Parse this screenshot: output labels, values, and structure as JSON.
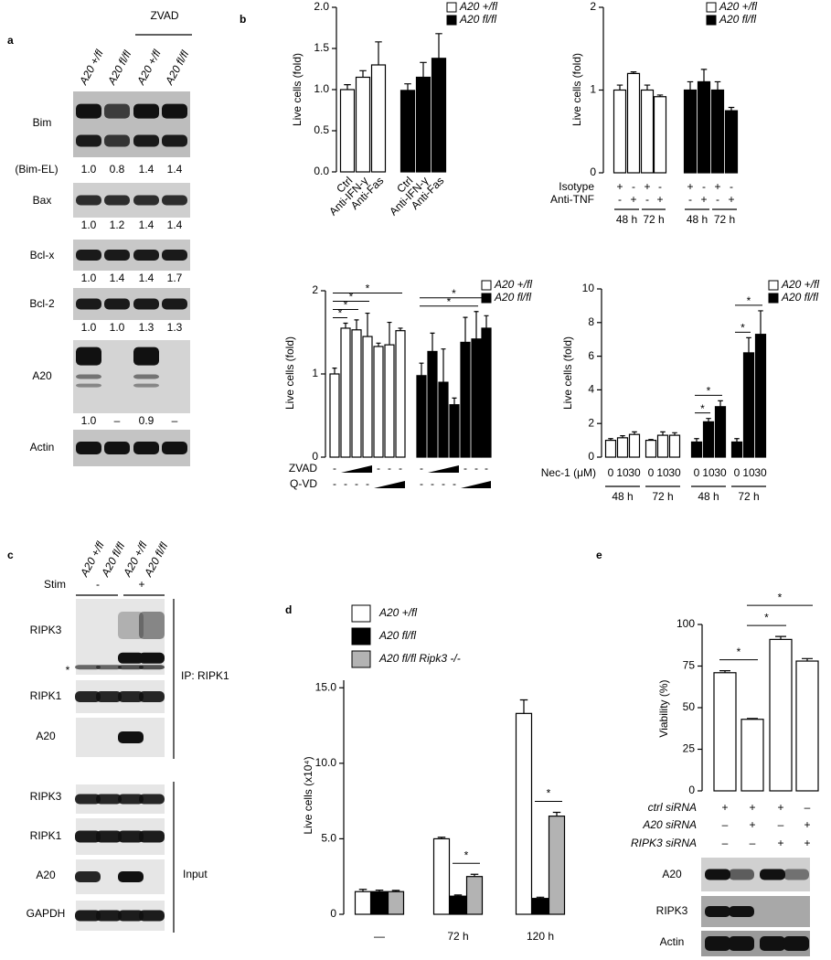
{
  "panel_labels": [
    "a",
    "b",
    "c",
    "d",
    "e"
  ],
  "blot_a": {
    "lanes": [
      "A20 +/fl",
      "A20 fl/fl",
      "A20 +/fl",
      "A20 fl/fl"
    ],
    "treatment": "ZVAD",
    "rows": [
      {
        "label": "Bim",
        "quant_label": "(Bim-EL)",
        "quant": [
          "1.0",
          "0.8",
          "1.4",
          "1.4"
        ]
      },
      {
        "label": "Bax",
        "quant": [
          "1.0",
          "1.2",
          "1.4",
          "1.4"
        ]
      },
      {
        "label": "Bcl-x",
        "quant": [
          "1.0",
          "1.4",
          "1.4",
          "1.7"
        ]
      },
      {
        "label": "Bcl-2",
        "quant": [
          "1.0",
          "1.0",
          "1.3",
          "1.3"
        ]
      },
      {
        "label": "A20",
        "quant": [
          "1.0",
          "–",
          "0.9",
          "–"
        ]
      },
      {
        "label": "Actin"
      }
    ]
  },
  "blot_c": {
    "lanes": [
      "A20 +/fl",
      "A20 fl/fl",
      "A20 +/fl",
      "A20 fl/fl"
    ],
    "stim_label": "Stim",
    "stim": [
      "-",
      "+"
    ],
    "ip_rows": [
      {
        "label": "RIPK3",
        "marker": "*"
      },
      {
        "label": "RIPK1"
      },
      {
        "label": "A20"
      }
    ],
    "ip_label": "IP: RIPK1",
    "input_rows": [
      {
        "label": "RIPK3"
      },
      {
        "label": "RIPK1"
      },
      {
        "label": "A20"
      },
      {
        "label": "GAPDH"
      }
    ],
    "input_label": "Input"
  },
  "blot_e": {
    "rows": [
      {
        "label": "A20"
      },
      {
        "label": "RIPK3"
      },
      {
        "label": "Actin"
      }
    ]
  },
  "chart_data": [
    {
      "type": "bar",
      "y_label": "Live cells (fold)",
      "categories": [
        "Ctrl",
        "Anti-IFN-γ",
        "Anti-Fas"
      ],
      "series": [
        {
          "name": "A20 +/fl",
          "color": "#ffffff",
          "values": [
            1.0,
            1.15,
            1.3
          ],
          "errors": [
            0.06,
            0.08,
            0.28
          ]
        },
        {
          "name": "A20 fl/fl",
          "color": "#000000",
          "values": [
            0.99,
            1.15,
            1.38
          ],
          "errors": [
            0.08,
            0.18,
            0.3
          ]
        }
      ],
      "ylim": [
        0,
        2
      ],
      "yticks": [
        {
          "value": 0,
          "label": "0.0"
        },
        0.5,
        {
          "value": 1,
          "label": "1.0"
        },
        1.5,
        {
          "value": 2,
          "label": "2.0"
        }
      ]
    },
    {
      "type": "bar",
      "y_label": "Live cells (fold)",
      "series": [
        {
          "name": "A20 +/fl",
          "color": "#ffffff",
          "values": [
            1.0,
            1.2,
            1.0,
            0.92
          ],
          "errors": [
            0.06,
            0.02,
            0.06,
            0.02
          ]
        },
        {
          "name": "A20 fl/fl",
          "color": "#000000",
          "values": [
            1.0,
            1.1,
            1.0,
            0.75
          ],
          "errors": [
            0.1,
            0.15,
            0.1,
            0.04
          ]
        }
      ],
      "ylim": [
        0,
        2
      ],
      "yticks": [
        0,
        1,
        2
      ],
      "rows": [
        {
          "label": "Isotype",
          "cells": [
            "+",
            "-",
            "+",
            "-",
            "+",
            "-",
            "+",
            "-"
          ]
        },
        {
          "label": "Anti-TNF",
          "cells": [
            "-",
            "+",
            "-",
            "+",
            "-",
            "+",
            "-",
            "+"
          ]
        }
      ],
      "spans": [
        "48 h",
        "72 h",
        "48 h",
        "72 h"
      ]
    },
    {
      "type": "bar",
      "y_label": "Live cells (fold)",
      "series": [
        {
          "name": "A20 +/fl",
          "color": "#ffffff",
          "values": [
            1.0,
            1.55,
            1.53,
            1.45,
            1.33,
            1.35,
            1.52
          ],
          "errors": [
            0.07,
            0.06,
            0.12,
            0.28,
            0.04,
            0.27,
            0.03
          ]
        },
        {
          "name": "A20 fl/fl",
          "color": "#000000",
          "values": [
            0.98,
            1.27,
            0.9,
            0.63,
            1.38,
            1.42,
            1.55
          ],
          "errors": [
            0.15,
            0.22,
            0.4,
            0.08,
            0.3,
            0.33,
            0.15
          ]
        }
      ],
      "ylim": [
        0,
        2
      ],
      "yticks": [
        0,
        1,
        2
      ],
      "rows": [
        {
          "label": "ZVAD",
          "cells": [
            "-",
            null,
            null,
            null,
            "-",
            "-",
            "-",
            "-",
            null,
            null,
            null,
            "-",
            "-",
            "-"
          ]
        },
        {
          "label": "Q-VD",
          "cells": [
            "-",
            "-",
            "-",
            "-",
            null,
            null,
            null,
            "-",
            "-",
            "-",
            "-",
            null,
            null,
            null
          ]
        }
      ],
      "significance": [
        {
          "label": "*",
          "from": [
            0,
            0
          ],
          "to": [
            0,
            1
          ]
        },
        {
          "label": "*",
          "from": [
            0,
            0
          ],
          "to": [
            0,
            2
          ]
        },
        {
          "label": "*",
          "from": [
            0,
            0
          ],
          "to": [
            0,
            3
          ]
        },
        {
          "label": "*",
          "from": [
            0,
            0
          ],
          "to": [
            0,
            6
          ]
        },
        {
          "label": "*",
          "from": [
            1,
            0
          ],
          "to": [
            1,
            5
          ]
        },
        {
          "label": "*",
          "from": [
            1,
            0
          ],
          "to": [
            1,
            6
          ]
        }
      ]
    },
    {
      "type": "bar",
      "y_label": "Live cells (fold)",
      "series": [
        {
          "name": "A20 +/fl",
          "color": "#ffffff",
          "values": [
            1.0,
            1.15,
            1.35,
            1.0,
            1.3,
            1.3
          ],
          "errors": [
            0.1,
            0.12,
            0.15,
            0.05,
            0.2,
            0.15
          ]
        },
        {
          "name": "A20 fl/fl",
          "color": "#000000",
          "values": [
            0.9,
            2.1,
            3.0,
            0.9,
            6.2,
            7.3
          ],
          "errors": [
            0.2,
            0.2,
            0.35,
            0.2,
            0.9,
            1.4
          ]
        }
      ],
      "ylim": [
        0,
        10
      ],
      "yticks": [
        0,
        2,
        4,
        6,
        8,
        10
      ],
      "rows": [
        {
          "label": "Nec-1 (μM)",
          "cells": [
            "0",
            "10",
            "30",
            "0",
            "10",
            "30",
            "0",
            "10",
            "30",
            "0",
            "10",
            "30"
          ]
        }
      ],
      "spans": [
        "48 h",
        "72 h",
        "48 h",
        "72 h"
      ],
      "significance": [
        {
          "label": "*",
          "from": [
            1,
            0
          ],
          "to": [
            1,
            1
          ]
        },
        {
          "label": "*",
          "from": [
            1,
            0
          ],
          "to": [
            1,
            2
          ]
        },
        {
          "label": "*",
          "from": [
            1,
            3
          ],
          "to": [
            1,
            4
          ]
        },
        {
          "label": "*",
          "from": [
            1,
            3
          ],
          "to": [
            1,
            5
          ]
        }
      ]
    },
    {
      "type": "bar",
      "y_label": "Live cells (x10⁴)",
      "categories": [
        "—",
        "72 h",
        "120 h"
      ],
      "series": [
        {
          "name": "A20 +/fl",
          "color": "#ffffff",
          "values": [
            1.5,
            5.0,
            13.3
          ],
          "errors": [
            0.15,
            0.1,
            0.9
          ]
        },
        {
          "name": "A20 fl/fl",
          "color": "#000000",
          "values": [
            1.5,
            1.2,
            1.05
          ],
          "errors": [
            0.1,
            0.08,
            0.08
          ]
        },
        {
          "name": "A20 fl/fl Ripk3 -/-",
          "color": "#b3b3b3",
          "values": [
            1.5,
            2.5,
            6.5
          ],
          "errors": [
            0.08,
            0.15,
            0.25
          ]
        }
      ],
      "ylim": [
        0,
        15.5
      ],
      "yticks": [
        0,
        {
          "value": 5,
          "label": "5.0"
        },
        {
          "value": 10,
          "label": "10.0"
        },
        {
          "value": 15,
          "label": "15.0"
        }
      ],
      "significance": [
        {
          "label": "*",
          "from": [
            1,
            1
          ],
          "to": [
            2,
            1
          ]
        },
        {
          "label": "*",
          "from": [
            1,
            2
          ],
          "to": [
            2,
            2
          ]
        }
      ]
    },
    {
      "type": "bar",
      "y_label": "Viability (%)",
      "series": [
        {
          "color": "#ffffff",
          "values": [
            71,
            43,
            91,
            78
          ],
          "errors": [
            1.2,
            0.5,
            1.8,
            1.5
          ]
        }
      ],
      "ylim": [
        0,
        100
      ],
      "yticks": [
        0,
        25,
        50,
        75,
        100
      ],
      "rows": [
        {
          "label": "ctrl siRNA",
          "cells": [
            "+",
            "+",
            "+",
            "–"
          ]
        },
        {
          "label": "A20 siRNA",
          "cells": [
            "–",
            "+",
            "–",
            "+"
          ]
        },
        {
          "label": "RIPK3 siRNA",
          "cells": [
            "–",
            "–",
            "+",
            "+"
          ]
        }
      ],
      "significance": [
        {
          "label": "*",
          "from": [
            0,
            0
          ],
          "to": [
            0,
            1
          ]
        },
        {
          "label": "*",
          "from": [
            0,
            1
          ],
          "to": [
            0,
            2
          ]
        },
        {
          "label": "*",
          "from": [
            0,
            1
          ],
          "to": [
            0,
            3
          ]
        }
      ]
    }
  ]
}
